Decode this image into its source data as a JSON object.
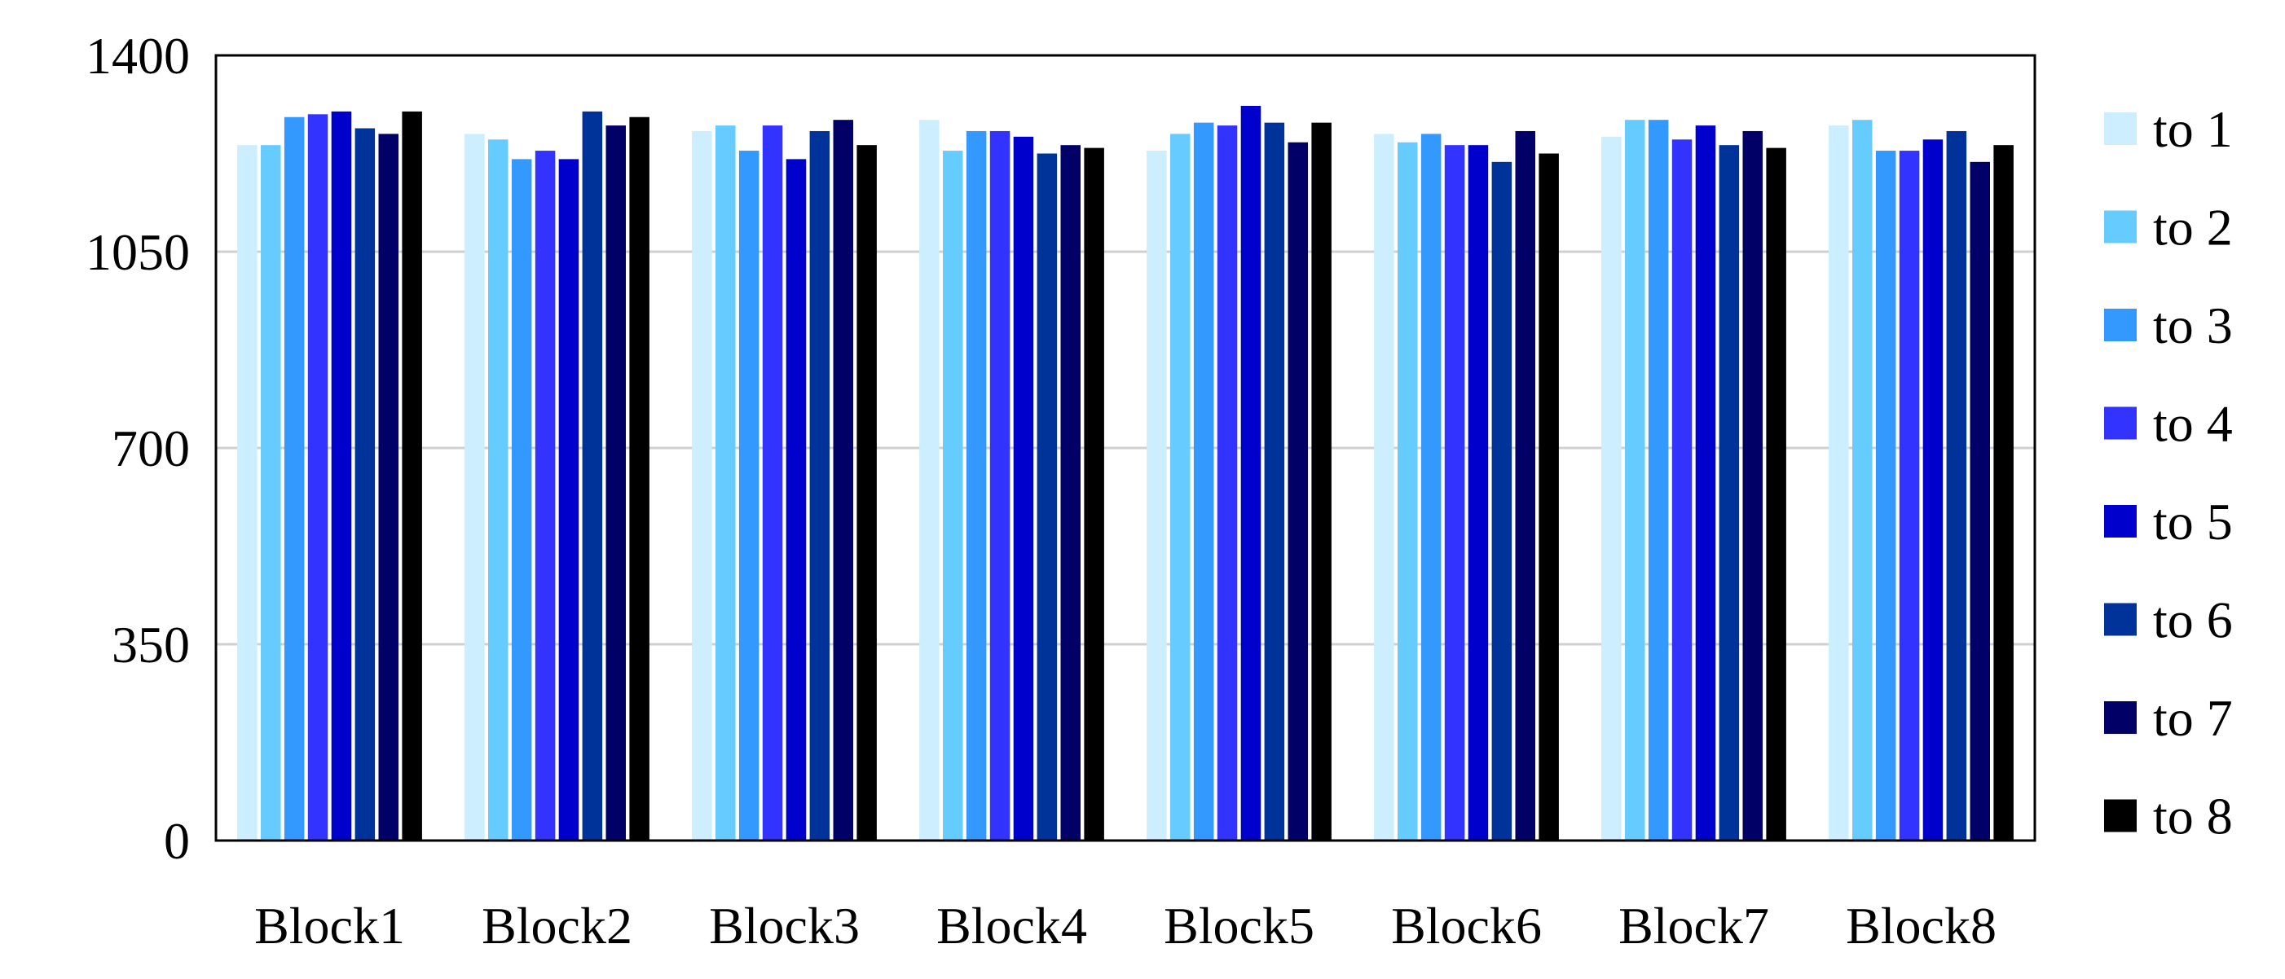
{
  "chart_data": {
    "type": "bar",
    "title": "",
    "xlabel": "",
    "ylabel": "",
    "ylim": [
      0,
      1400
    ],
    "yticks": [
      0,
      350,
      700,
      1050,
      1400
    ],
    "grid": true,
    "legend_position": "right",
    "categories": [
      "Block1",
      "Block2",
      "Block3",
      "Block4",
      "Block5",
      "Block6",
      "Block7",
      "Block8"
    ],
    "series": [
      {
        "name": "to 1",
        "color": "#cceeff",
        "values": [
          1240,
          1260,
          1265,
          1285,
          1230,
          1260,
          1255,
          1275
        ]
      },
      {
        "name": "to 2",
        "color": "#66ccff",
        "values": [
          1240,
          1250,
          1275,
          1230,
          1260,
          1245,
          1285,
          1285
        ]
      },
      {
        "name": "to 3",
        "color": "#3399ff",
        "values": [
          1290,
          1215,
          1230,
          1265,
          1280,
          1260,
          1285,
          1230
        ]
      },
      {
        "name": "to 4",
        "color": "#3333ff",
        "values": [
          1295,
          1230,
          1275,
          1265,
          1275,
          1240,
          1250,
          1230
        ]
      },
      {
        "name": "to 5",
        "color": "#0000cc",
        "values": [
          1300,
          1215,
          1215,
          1255,
          1310,
          1240,
          1275,
          1250
        ]
      },
      {
        "name": "to 6",
        "color": "#003399",
        "values": [
          1270,
          1300,
          1265,
          1225,
          1280,
          1210,
          1240,
          1265
        ]
      },
      {
        "name": "to 7",
        "color": "#000066",
        "values": [
          1260,
          1275,
          1285,
          1240,
          1245,
          1265,
          1265,
          1210
        ]
      },
      {
        "name": "to 8",
        "color": "#000000",
        "values": [
          1300,
          1290,
          1240,
          1235,
          1280,
          1225,
          1235,
          1240
        ]
      }
    ]
  }
}
